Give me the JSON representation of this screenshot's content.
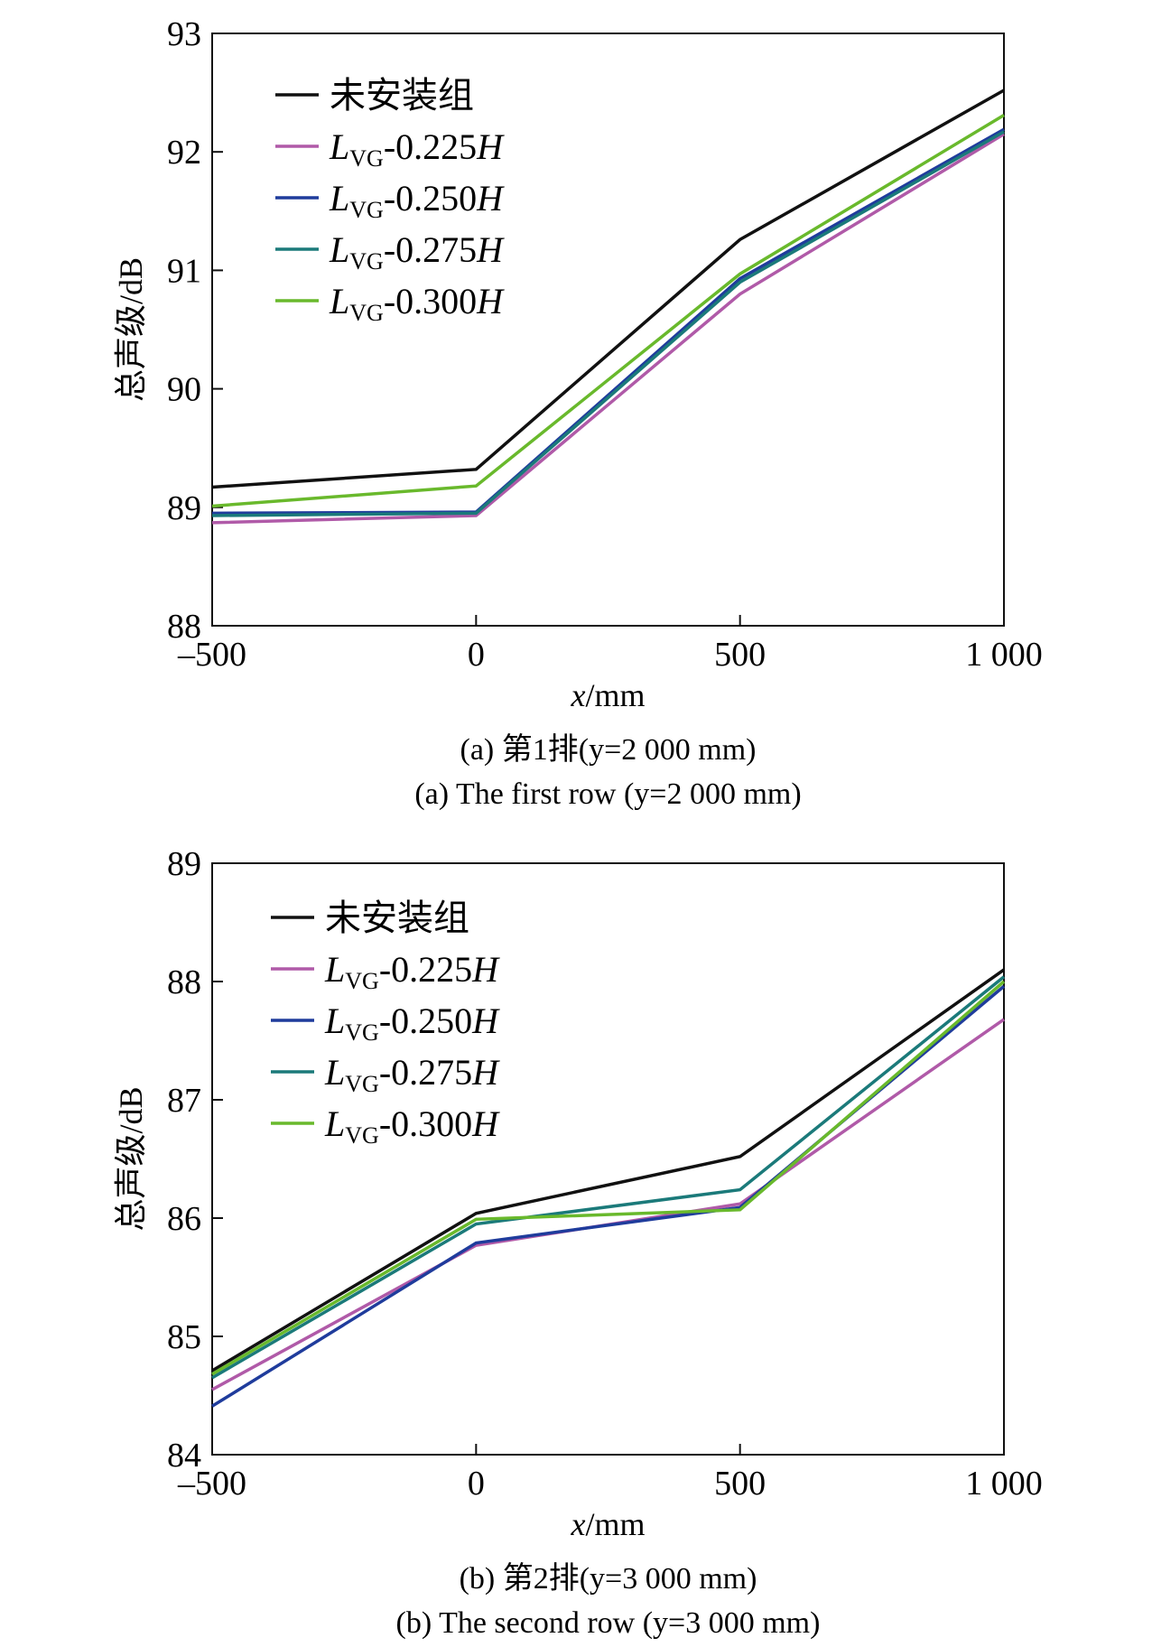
{
  "chart_data": [
    {
      "type": "line",
      "x": [
        -500,
        0,
        500,
        1000
      ],
      "xticks": [
        "–500",
        "0",
        "500",
        "1 000"
      ],
      "xlabel": {
        "var": "x",
        "unit": "/mm"
      },
      "ylabel": "总声级/dB",
      "ylim": [
        88,
        93
      ],
      "yticks": [
        "88",
        "89",
        "90",
        "91",
        "92",
        "93"
      ],
      "legend": "top-left",
      "caption_cn": "(a) 第1排(y=2 000 mm)",
      "caption_en": "(a) The first row (y=2 000 mm)",
      "series": [
        {
          "name": "未安装组",
          "color": "#111111",
          "values": [
            89.17,
            89.32,
            91.26,
            92.52
          ]
        },
        {
          "name": "L_VG-0.225H",
          "main": "L",
          "sub": "VG",
          "tail": "-0.225",
          "ital": "H",
          "color": "#b05aa8",
          "values": [
            88.87,
            88.93,
            90.8,
            92.15
          ]
        },
        {
          "name": "L_VG-0.250H",
          "main": "L",
          "sub": "VG",
          "tail": "-0.250",
          "ital": "H",
          "color": "#1f3c9c",
          "values": [
            88.95,
            88.96,
            90.93,
            92.19
          ]
        },
        {
          "name": "L_VG-0.275H",
          "main": "L",
          "sub": "VG",
          "tail": "-0.275",
          "ital": "H",
          "color": "#1b7a7a",
          "values": [
            88.93,
            88.95,
            90.9,
            92.17
          ]
        },
        {
          "name": "L_VG-0.300H",
          "main": "L",
          "sub": "VG",
          "tail": "-0.300",
          "ital": "H",
          "color": "#69b92c",
          "values": [
            89.01,
            89.18,
            90.97,
            92.31
          ]
        }
      ]
    },
    {
      "type": "line",
      "x": [
        -500,
        0,
        500,
        1000
      ],
      "xticks": [
        "–500",
        "0",
        "500",
        "1 000"
      ],
      "xlabel": {
        "var": "x",
        "unit": "/mm"
      },
      "ylabel": "总声级/dB",
      "ylim": [
        84,
        89
      ],
      "yticks": [
        "84",
        "85",
        "86",
        "87",
        "88",
        "89"
      ],
      "legend": "top-left",
      "caption_cn": "(b) 第2排(y=3 000 mm)",
      "caption_en": "(b) The second row (y=3 000 mm)",
      "series": [
        {
          "name": "未安装组",
          "color": "#111111",
          "values": [
            84.71,
            86.04,
            86.52,
            88.1
          ]
        },
        {
          "name": "L_VG-0.225H",
          "main": "L",
          "sub": "VG",
          "tail": "-0.225",
          "ital": "H",
          "color": "#b05aa8",
          "values": [
            84.55,
            85.77,
            86.12,
            87.68
          ]
        },
        {
          "name": "L_VG-0.250H",
          "main": "L",
          "sub": "VG",
          "tail": "-0.250",
          "ital": "H",
          "color": "#1f3c9c",
          "values": [
            84.41,
            85.79,
            86.09,
            87.96
          ]
        },
        {
          "name": "L_VG-0.275H",
          "main": "L",
          "sub": "VG",
          "tail": "-0.275",
          "ital": "H",
          "color": "#1b7a7a",
          "values": [
            84.65,
            85.95,
            86.24,
            88.04
          ]
        },
        {
          "name": "L_VG-0.300H",
          "main": "L",
          "sub": "VG",
          "tail": "-0.300",
          "ital": "H",
          "color": "#69b92c",
          "values": [
            84.68,
            85.99,
            86.07,
            88.0
          ]
        }
      ]
    }
  ]
}
